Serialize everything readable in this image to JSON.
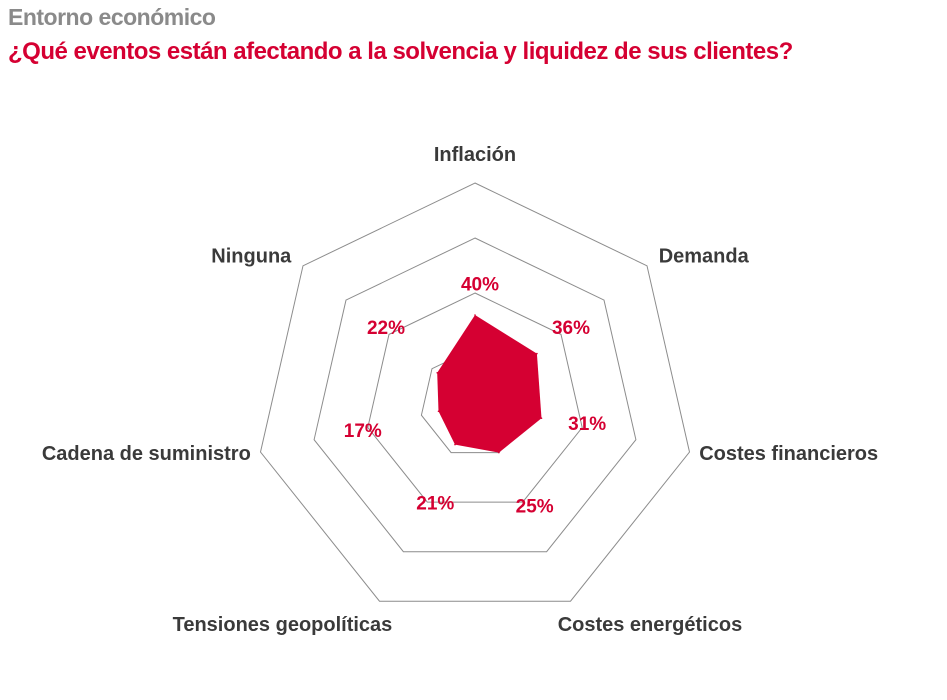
{
  "header": {
    "supertitle": "Entorno económico",
    "title": "¿Qué eventos están afectando a la solvencia y liquidez de sus clientes?"
  },
  "colors": {
    "accent": "#d50032",
    "grid": "#8c8c8c",
    "label": "#3a3a3a",
    "supertitle": "#8a8a8a"
  },
  "chart_data": {
    "type": "radar",
    "categories": [
      "Inflación",
      "Demanda",
      "Costes financieros",
      "Costes energéticos",
      "Tensiones geopolíticas",
      "Cadena de suministro",
      "Ninguna"
    ],
    "values": [
      40,
      36,
      31,
      25,
      21,
      17,
      22
    ],
    "value_labels": [
      "40%",
      "36%",
      "31%",
      "25%",
      "21%",
      "17%",
      "22%"
    ],
    "rlim": [
      0,
      100
    ],
    "grid_levels": [
      25,
      50,
      75,
      100
    ],
    "grid": true
  }
}
